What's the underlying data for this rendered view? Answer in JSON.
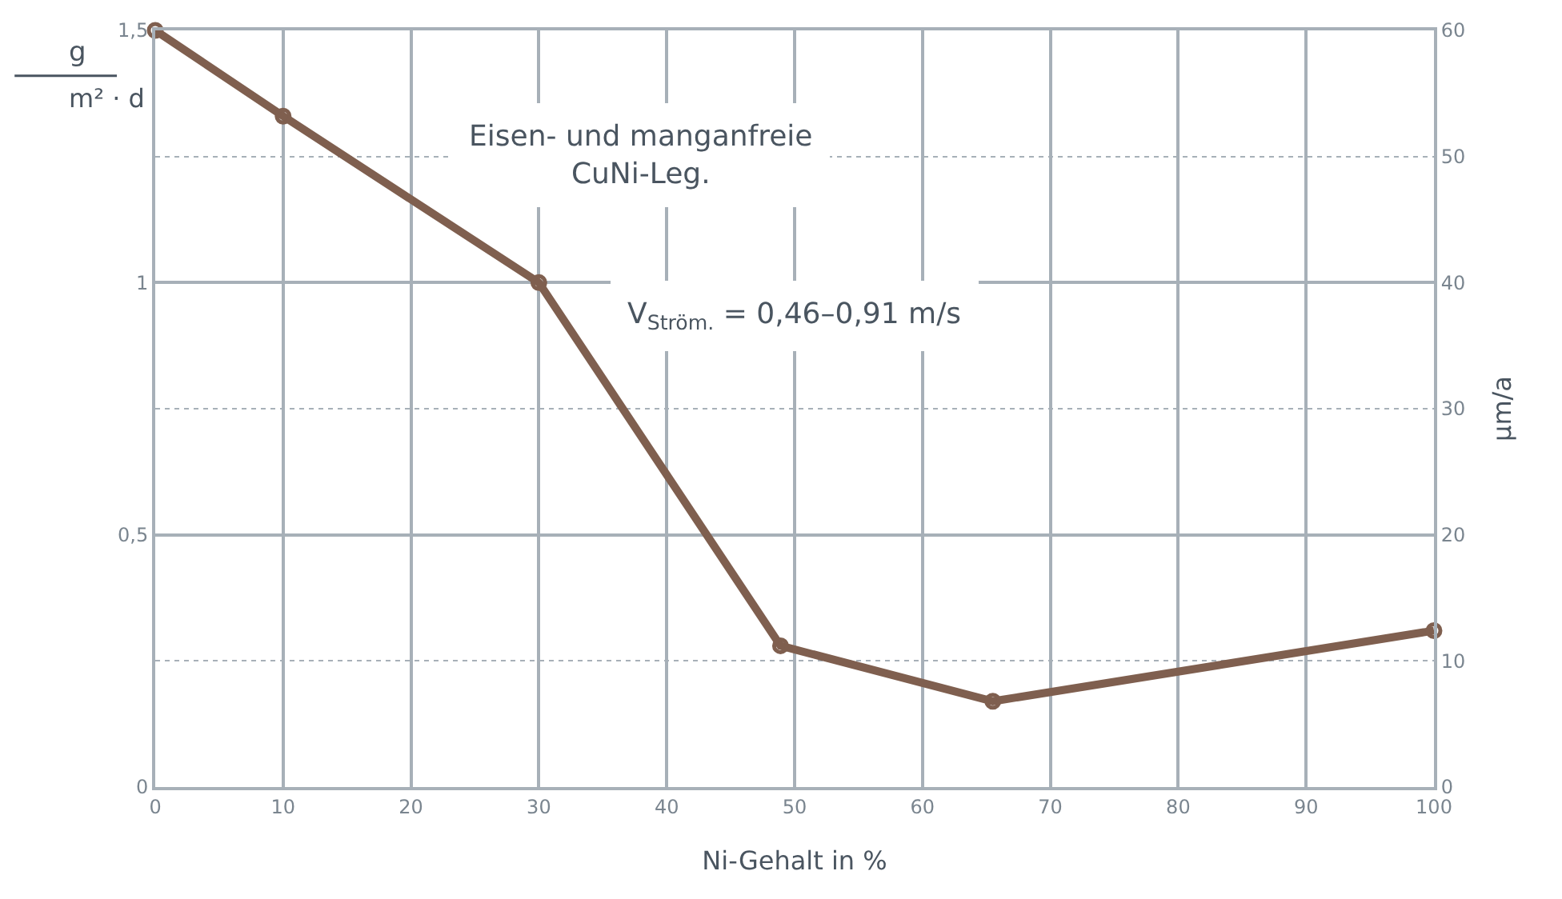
{
  "chart_data": {
    "type": "line",
    "xlabel": "Ni-Gehalt in %",
    "ylabel": "g\nm² · d",
    "y2label": "µm/a",
    "x": [
      0,
      10,
      30,
      48.9,
      65.5,
      100
    ],
    "series": [
      {
        "color": "#7f5f4f",
        "values": [
          1.5,
          1.33,
          1.0,
          0.28,
          0.17,
          0.31
        ]
      }
    ],
    "xlim": [
      0,
      100
    ],
    "xticks": [
      0,
      10,
      20,
      30,
      40,
      50,
      60,
      70,
      80,
      90,
      100
    ],
    "ylim": [
      0,
      1.5
    ],
    "yticks": [
      0,
      {
        "value": 0.5,
        "label": "0,5"
      },
      1,
      {
        "value": 1.5,
        "label": "1,5"
      }
    ],
    "y2lim": [
      0,
      60
    ],
    "y2ticks": [
      0,
      10,
      20,
      30,
      40,
      50,
      60
    ],
    "grid": true,
    "marker": "circle",
    "line_style": "solid",
    "annotations": [
      "Eisen- und manganfreie\nCuNi-Leg.",
      "V$_{Ström.}$ = 0,46–0,91 m/s"
    ]
  }
}
